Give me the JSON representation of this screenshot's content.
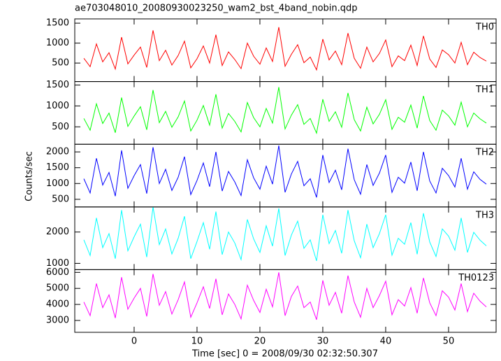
{
  "chart_data": {
    "type": "line",
    "title": "ae703048010_20080930023250_wam2_bst_4band_nobin.qdp",
    "xlabel": "Time [sec] 0 = 2008/09/30 02:32:50.307",
    "ylabel": "Counts/sec",
    "xlim": [
      -9.44,
      57.56
    ],
    "xticks": [
      0,
      10,
      20,
      30,
      40,
      50
    ],
    "x": [
      -8,
      -7,
      -6,
      -5,
      -4,
      -3,
      -2,
      -1,
      0,
      1,
      2,
      3,
      4,
      5,
      6,
      7,
      8,
      9,
      10,
      11,
      12,
      13,
      14,
      15,
      16,
      17,
      18,
      19,
      20,
      21,
      22,
      23,
      24,
      25,
      26,
      27,
      28,
      29,
      30,
      31,
      32,
      33,
      34,
      35,
      36,
      37,
      38,
      39,
      40,
      41,
      42,
      43,
      44,
      45,
      46,
      47,
      48,
      49,
      50,
      51,
      52,
      53,
      54,
      55,
      56
    ],
    "series": [
      {
        "name": "TH0",
        "color": "#ff0000",
        "ylim": [
          36,
          1607
        ],
        "yticks": [
          500,
          1000,
          1500
        ],
        "values": [
          620,
          410,
          980,
          530,
          760,
          350,
          1150,
          480,
          700,
          900,
          390,
          1320,
          560,
          820,
          450,
          690,
          1050,
          380,
          610,
          930,
          500,
          1210,
          440,
          780,
          590,
          360,
          1000,
          670,
          470,
          880,
          540,
          1400,
          420,
          720,
          960,
          510,
          650,
          330,
          1100,
          580,
          800,
          460,
          1250,
          620,
          370,
          900,
          530,
          740,
          1080,
          410,
          680,
          560,
          950,
          440,
          1180,
          600,
          390,
          830,
          710,
          500,
          1020,
          460,
          770,
          640,
          550
        ]
      },
      {
        "name": "TH1",
        "color": "#00ff00",
        "ylim": [
          83,
          1583
        ],
        "yticks": [
          500,
          1000,
          1500
        ],
        "values": [
          700,
          420,
          1050,
          580,
          830,
          360,
          1200,
          510,
          760,
          980,
          430,
          1380,
          600,
          870,
          490,
          740,
          1120,
          400,
          660,
          1010,
          540,
          1280,
          470,
          820,
          630,
          380,
          1080,
          720,
          500,
          940,
          590,
          1450,
          450,
          780,
          1030,
          560,
          700,
          350,
          1160,
          630,
          860,
          490,
          1310,
          670,
          400,
          970,
          570,
          800,
          1150,
          440,
          730,
          610,
          1020,
          470,
          1240,
          650,
          420,
          900,
          760,
          540,
          1090,
          500,
          830,
          690,
          590
        ]
      },
      {
        "name": "TH2",
        "color": "#0000ff",
        "ylim": [
          258,
          2242
        ],
        "yticks": [
          500,
          1000,
          1500,
          2000
        ],
        "values": [
          1150,
          700,
          1800,
          950,
          1350,
          600,
          2050,
          850,
          1250,
          1600,
          680,
          2150,
          1000,
          1450,
          780,
          1200,
          1850,
          650,
          1100,
          1650,
          900,
          2000,
          760,
          1380,
          1050,
          620,
          1750,
          1180,
          820,
          1550,
          980,
          2200,
          720,
          1300,
          1700,
          930,
          1150,
          560,
          1900,
          1030,
          1420,
          800,
          2100,
          1120,
          660,
          1600,
          940,
          1330,
          1900,
          720,
          1200,
          1010,
          1680,
          770,
          2000,
          1080,
          700,
          1480,
          1250,
          890,
          1800,
          820,
          1370,
          1130,
          980
        ]
      },
      {
        "name": "TH3",
        "color": "#00ffff",
        "ylim": [
          800,
          2800
        ],
        "yticks": [
          1000,
          2000
        ],
        "values": [
          1750,
          1250,
          2450,
          1500,
          1950,
          1150,
          2700,
          1400,
          1850,
          2250,
          1200,
          2800,
          1600,
          2100,
          1300,
          1800,
          2500,
          1150,
          1700,
          2300,
          1450,
          2650,
          1280,
          2000,
          1650,
          1120,
          2400,
          1780,
          1350,
          2200,
          1550,
          2750,
          1250,
          1900,
          2350,
          1480,
          1750,
          1080,
          2550,
          1630,
          2050,
          1320,
          2700,
          1720,
          1180,
          2250,
          1500,
          1950,
          2550,
          1260,
          1800,
          1610,
          2300,
          1290,
          2600,
          1680,
          1220,
          2100,
          1870,
          1420,
          2450,
          1350,
          1990,
          1740,
          1560
        ]
      },
      {
        "name": "TH0123",
        "color": "#ff00ff",
        "ylim": [
          2260,
          6170
        ],
        "yticks": [
          3000,
          4000,
          5000,
          6000
        ],
        "values": [
          4150,
          3300,
          5300,
          3800,
          4600,
          3150,
          5700,
          3700,
          4400,
          5000,
          3250,
          5900,
          3950,
          4800,
          3400,
          4300,
          5400,
          3200,
          4100,
          5100,
          3750,
          5600,
          3350,
          4650,
          4000,
          3100,
          5200,
          4250,
          3500,
          4950,
          3850,
          6000,
          3300,
          4500,
          5150,
          3800,
          4150,
          3050,
          5500,
          3950,
          4750,
          3450,
          5800,
          4150,
          3200,
          5000,
          3800,
          4550,
          5450,
          3350,
          4300,
          3900,
          5050,
          3450,
          5650,
          4100,
          3300,
          4850,
          4450,
          3650,
          5300,
          3550,
          4700,
          4200,
          3850
        ]
      }
    ]
  }
}
